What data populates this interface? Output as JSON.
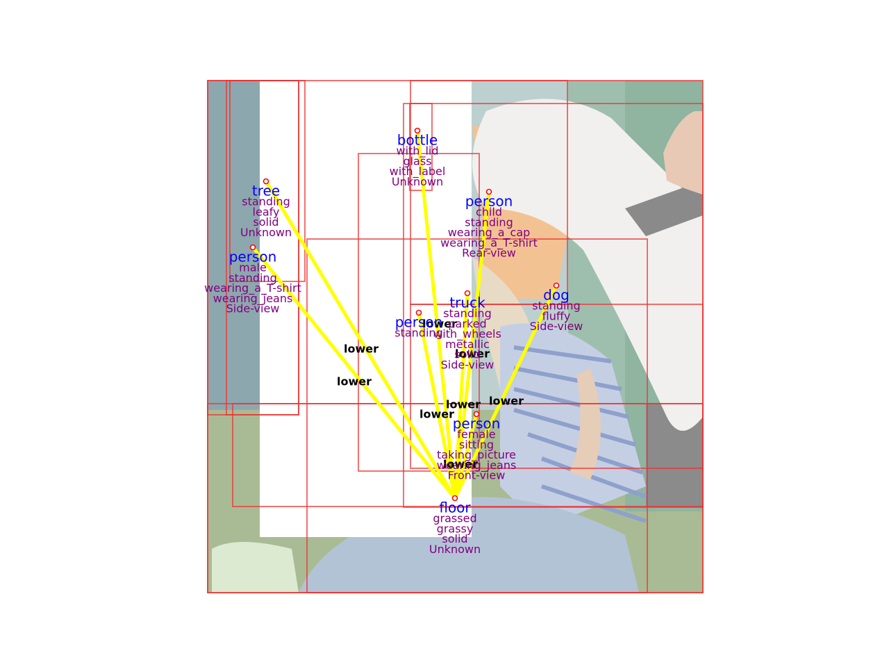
{
  "colors": {
    "box": "#ee3333",
    "relation_line": "#ffff00",
    "object_label": "#0000ff",
    "attribute_label": "#800080",
    "relation_label": "#000000",
    "keypoint": "#ff0000"
  },
  "objects": [
    {
      "id": "bottle",
      "label": "bottle",
      "attributes": [
        "with_lid",
        "glass",
        "with_label",
        "Unknown"
      ]
    },
    {
      "id": "tree",
      "label": "tree",
      "attributes": [
        "standing",
        "leafy",
        "solid",
        "Unknown"
      ]
    },
    {
      "id": "person_child",
      "label": "person",
      "attributes": [
        "child",
        "standing",
        "wearing_a_cap",
        "wearing_a_T-shirt",
        "Rear-view"
      ]
    },
    {
      "id": "person_male",
      "label": "person",
      "attributes": [
        "male",
        "standing",
        "wearing_a_T-shirt",
        "wearing_jeans",
        "Side-view"
      ]
    },
    {
      "id": "dog",
      "label": "dog",
      "attributes": [
        "standing",
        "fluffy",
        "Side-view"
      ]
    },
    {
      "id": "truck",
      "label": "truck",
      "attributes": [
        "standing",
        "parked",
        "with_wheels",
        "metallic",
        "solid",
        "Side-view"
      ]
    },
    {
      "id": "person_standing",
      "label": "person",
      "attributes": [
        "standing"
      ]
    },
    {
      "id": "person_female",
      "label": "person",
      "attributes": [
        "female",
        "sitting",
        "taking_picture",
        "wearing_jeans",
        "Front-view"
      ]
    },
    {
      "id": "floor",
      "label": "floor",
      "attributes": [
        "grassed",
        "grassy",
        "solid",
        "Unknown"
      ]
    }
  ],
  "relations": [
    {
      "from": "tree",
      "to": "floor",
      "label": "lower"
    },
    {
      "from": "person_male",
      "to": "floor",
      "label": "lower"
    },
    {
      "from": "bottle",
      "to": "floor",
      "label": "lower"
    },
    {
      "from": "person_child",
      "to": "floor",
      "label": "lower"
    },
    {
      "from": "truck",
      "to": "floor",
      "label": "lower"
    },
    {
      "from": "person_standing",
      "to": "floor",
      "label": "lower"
    },
    {
      "from": "dog",
      "to": "floor",
      "label": "lower"
    },
    {
      "from": "person_female",
      "to": "floor",
      "label": "lower"
    }
  ]
}
